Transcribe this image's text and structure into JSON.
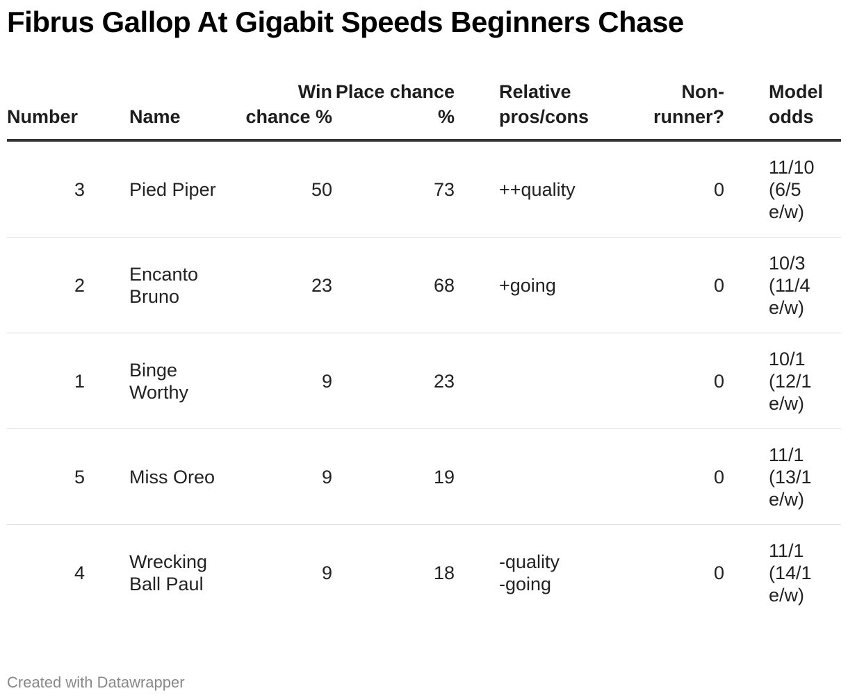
{
  "title": "Fibrus Gallop At Gigabit Speeds Beginners Chase",
  "footer": "Created with Datawrapper",
  "columns": {
    "number": "Number",
    "name": "Name",
    "win": "Win chance %",
    "place": "Place chance %",
    "relative": "Relative pros/cons",
    "nonrunner": "Non-runner?",
    "odds": "Model odds"
  },
  "chart_data": {
    "type": "table",
    "title": "Fibrus Gallop At Gigabit Speeds Beginners Chase",
    "headers": [
      "Number",
      "Name",
      "Win chance %",
      "Place chance %",
      "Relative pros/cons",
      "Non-runner?",
      "Model odds"
    ],
    "rows": [
      {
        "number": 3,
        "name": "Pied Piper",
        "win": 50,
        "place": 73,
        "relative": "++quality",
        "nonrunner": 0,
        "odds": "11/10 (6/5 e/w)"
      },
      {
        "number": 2,
        "name": "Encanto Bruno",
        "win": 23,
        "place": 68,
        "relative": "+going",
        "nonrunner": 0,
        "odds": "10/3 (11/4 e/w)"
      },
      {
        "number": 1,
        "name": "Binge Worthy",
        "win": 9,
        "place": 23,
        "relative": "",
        "nonrunner": 0,
        "odds": "10/1 (12/1 e/w)"
      },
      {
        "number": 5,
        "name": "Miss Oreo",
        "win": 9,
        "place": 19,
        "relative": "",
        "nonrunner": 0,
        "odds": "11/1 (13/1 e/w)"
      },
      {
        "number": 4,
        "name": "Wrecking Ball Paul",
        "win": 9,
        "place": 18,
        "relative": "-quality\n-going",
        "nonrunner": 0,
        "odds": "11/1 (14/1 e/w)"
      }
    ]
  }
}
